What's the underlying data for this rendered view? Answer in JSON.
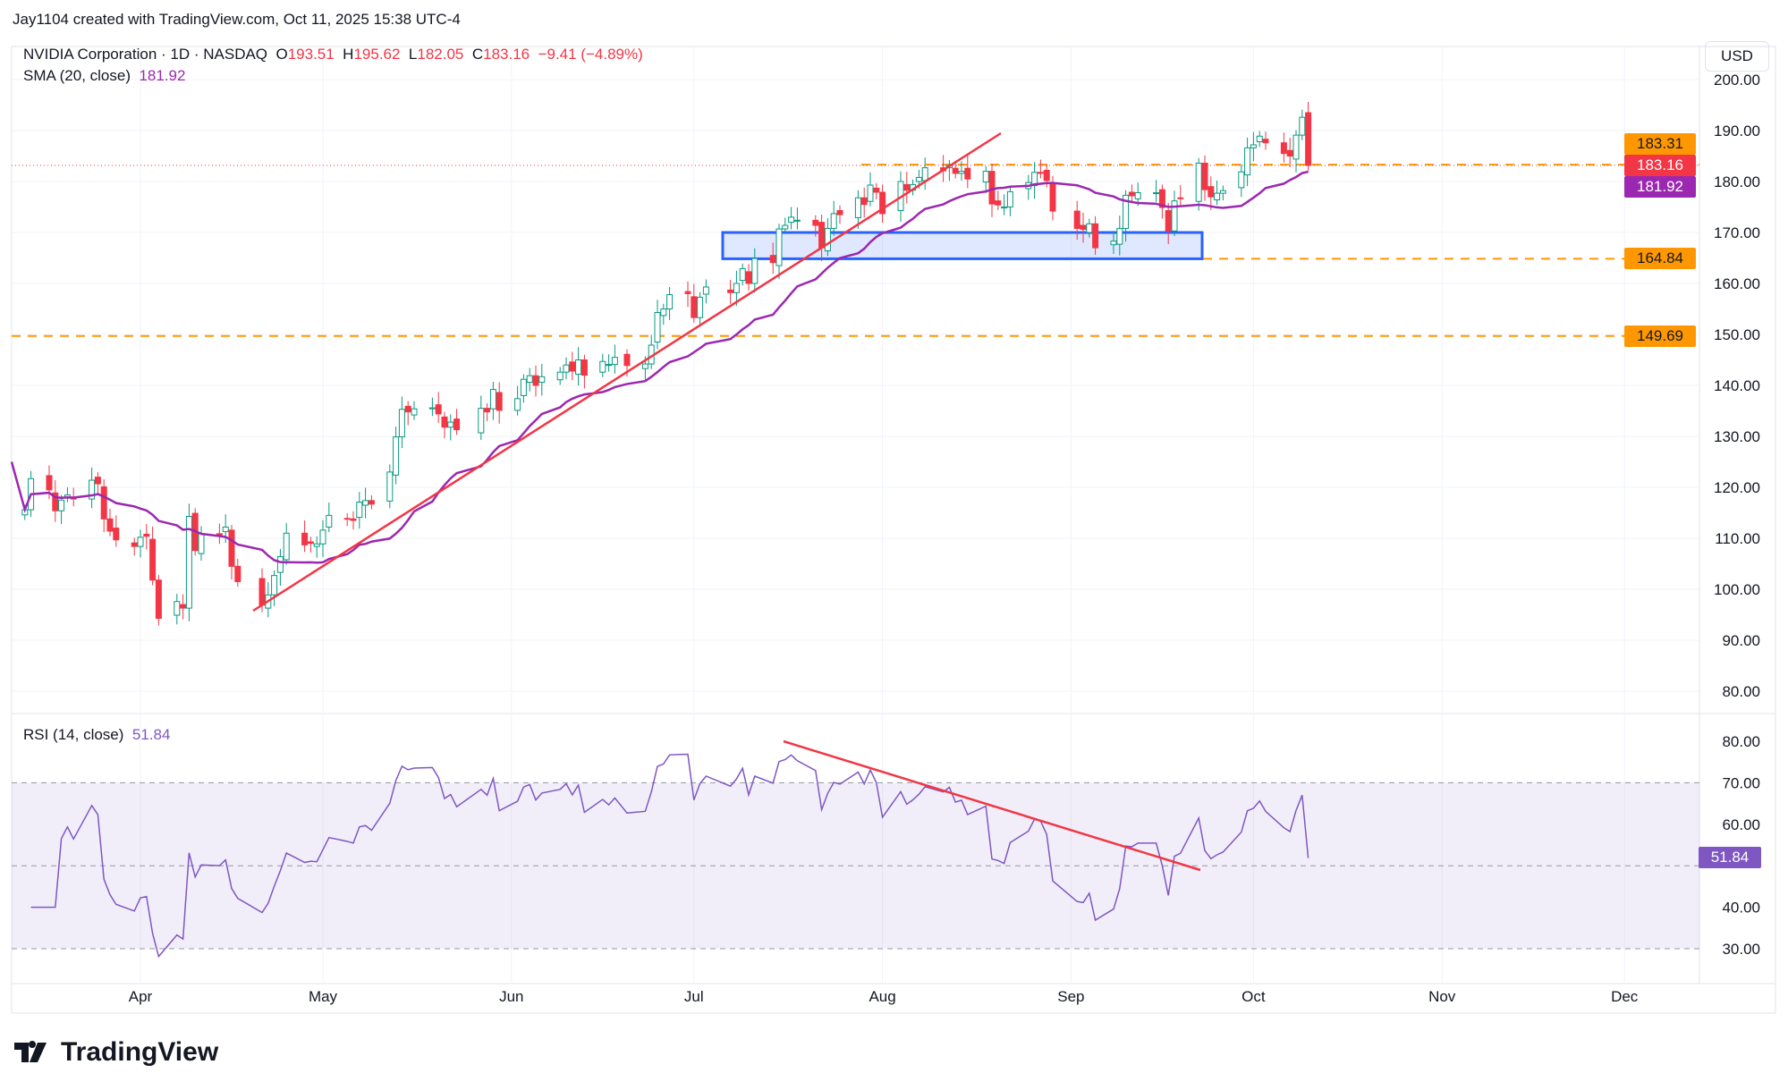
{
  "attribution": "Jay1104 created with TradingView.com, Oct 11, 2025 15:38 UTC-4",
  "symbol": {
    "name": "NVIDIA Corporation · 1D · NASDAQ",
    "o_label": "O",
    "o": "193.51",
    "h_label": "H",
    "h": "195.62",
    "l_label": "L",
    "l": "182.05",
    "c_label": "C",
    "c": "183.16",
    "change": "−9.41 (−4.89%)"
  },
  "sma": {
    "label": "SMA (20, close)",
    "value": "181.92"
  },
  "rsi": {
    "label": "RSI (14, close)",
    "value": "51.84"
  },
  "currency": "USD",
  "tags": {
    "resist": "183.31",
    "last": "183.16",
    "sma": "181.92",
    "support1": "164.84",
    "support2": "149.69",
    "rsi": "51.84"
  },
  "logo": "TradingView",
  "colors": {
    "up": "#089981",
    "down": "#f23645",
    "sma": "#9c27b0",
    "rsi": "#7e57c2",
    "level": "#ff9800",
    "trend": "#f23645",
    "box": "#2962ff"
  },
  "chart_data": {
    "type": "candlestick",
    "price_axis": {
      "ylim": [
        75,
        205
      ],
      "ticks": [
        "80.00",
        "90.00",
        "100.00",
        "110.00",
        "120.00",
        "130.00",
        "140.00",
        "150.00",
        "160.00",
        "170.00",
        "180.00",
        "190.00",
        "200.00"
      ]
    },
    "rsi_axis": {
      "ylim": [
        25,
        85
      ],
      "ticks": [
        "30.00",
        "40.00",
        "60.00",
        "70.00",
        "80.00"
      ],
      "levels": [
        30,
        50,
        70
      ]
    },
    "x_ticks": [
      {
        "label": "Apr",
        "date": "2025-04-01"
      },
      {
        "label": "May",
        "date": "2025-05-01"
      },
      {
        "label": "Jun",
        "date": "2025-06-01"
      },
      {
        "label": "Jul",
        "date": "2025-07-01"
      },
      {
        "label": "Aug",
        "date": "2025-08-01"
      },
      {
        "label": "Sep",
        "date": "2025-09-01"
      },
      {
        "label": "Oct",
        "date": "2025-10-01"
      },
      {
        "label": "Nov",
        "date": "2025-11-01"
      },
      {
        "label": "Dec",
        "date": "2025-12-01"
      }
    ],
    "horizontal_levels": [
      183.31,
      164.84,
      149.69
    ],
    "support_zone": [
      164.84,
      170
    ],
    "last_open": 193.51,
    "last_high": 195.62,
    "last_low": 182.05,
    "closes": [
      [
        "2025-03-13",
        115.6
      ],
      [
        "2025-03-14",
        121.7
      ],
      [
        "2025-03-17",
        119.5
      ],
      [
        "2025-03-18",
        115.4
      ],
      [
        "2025-03-19",
        117.5
      ],
      [
        "2025-03-20",
        118.5
      ],
      [
        "2025-03-21",
        117.7
      ],
      [
        "2025-03-24",
        121.4
      ],
      [
        "2025-03-25",
        120.7
      ],
      [
        "2025-03-26",
        113.8
      ],
      [
        "2025-03-27",
        111.4
      ],
      [
        "2025-03-28",
        109.7
      ],
      [
        "2025-03-31",
        108.4
      ],
      [
        "2025-04-01",
        110.2
      ],
      [
        "2025-04-02",
        110.4
      ],
      [
        "2025-04-03",
        101.8
      ],
      [
        "2025-04-04",
        94.3
      ],
      [
        "2025-04-07",
        97.6
      ],
      [
        "2025-04-08",
        96.3
      ],
      [
        "2025-04-09",
        114.3
      ],
      [
        "2025-04-10",
        107.6
      ],
      [
        "2025-04-11",
        110.9
      ],
      [
        "2025-04-14",
        110.7
      ],
      [
        "2025-04-15",
        112.2
      ],
      [
        "2025-04-16",
        104.5
      ],
      [
        "2025-04-17",
        101.5
      ],
      [
        "2025-04-21",
        96.9
      ],
      [
        "2025-04-22",
        98.9
      ],
      [
        "2025-04-23",
        102.7
      ],
      [
        "2025-04-24",
        106.4
      ],
      [
        "2025-04-25",
        111.0
      ],
      [
        "2025-04-28",
        108.7
      ],
      [
        "2025-04-29",
        109.0
      ],
      [
        "2025-04-30",
        108.9
      ],
      [
        "2025-05-01",
        111.6
      ],
      [
        "2025-05-02",
        114.5
      ],
      [
        "2025-05-05",
        113.8
      ],
      [
        "2025-05-06",
        113.5
      ],
      [
        "2025-05-07",
        117.1
      ],
      [
        "2025-05-08",
        117.4
      ],
      [
        "2025-05-09",
        116.7
      ],
      [
        "2025-05-12",
        123.0
      ],
      [
        "2025-05-13",
        129.9
      ],
      [
        "2025-05-14",
        135.3
      ],
      [
        "2025-05-15",
        134.8
      ],
      [
        "2025-05-16",
        135.4
      ],
      [
        "2025-05-19",
        135.6
      ],
      [
        "2025-05-20",
        134.4
      ],
      [
        "2025-05-21",
        131.8
      ],
      [
        "2025-05-22",
        132.8
      ],
      [
        "2025-05-23",
        131.3
      ],
      [
        "2025-05-27",
        135.5
      ],
      [
        "2025-05-28",
        134.8
      ],
      [
        "2025-05-29",
        139.2
      ],
      [
        "2025-05-30",
        135.1
      ],
      [
        "2025-06-02",
        137.4
      ],
      [
        "2025-06-03",
        141.2
      ],
      [
        "2025-06-04",
        141.9
      ],
      [
        "2025-06-05",
        140.0
      ],
      [
        "2025-06-06",
        141.7
      ],
      [
        "2025-06-09",
        142.6
      ],
      [
        "2025-06-10",
        144.0
      ],
      [
        "2025-06-11",
        142.8
      ],
      [
        "2025-06-12",
        145.0
      ],
      [
        "2025-06-13",
        142.0
      ],
      [
        "2025-06-16",
        144.7
      ],
      [
        "2025-06-17",
        144.1
      ],
      [
        "2025-06-18",
        145.5
      ],
      [
        "2025-06-20",
        143.9
      ],
      [
        "2025-06-23",
        144.2
      ],
      [
        "2025-06-24",
        147.9
      ],
      [
        "2025-06-25",
        154.3
      ],
      [
        "2025-06-26",
        155.0
      ],
      [
        "2025-06-27",
        157.8
      ],
      [
        "2025-06-30",
        158.0
      ],
      [
        "2025-07-01",
        153.3
      ],
      [
        "2025-07-02",
        157.3
      ],
      [
        "2025-07-03",
        159.3
      ],
      [
        "2025-07-07",
        158.2
      ],
      [
        "2025-07-08",
        160.0
      ],
      [
        "2025-07-09",
        162.9
      ],
      [
        "2025-07-10",
        160.0
      ],
      [
        "2025-07-11",
        164.9
      ],
      [
        "2025-07-14",
        164.1
      ],
      [
        "2025-07-15",
        170.7
      ],
      [
        "2025-07-16",
        171.4
      ],
      [
        "2025-07-17",
        173.0
      ],
      [
        "2025-07-18",
        172.4
      ],
      [
        "2025-07-21",
        171.4
      ],
      [
        "2025-07-22",
        167.0
      ],
      [
        "2025-07-23",
        170.8
      ],
      [
        "2025-07-24",
        173.7
      ],
      [
        "2025-07-25",
        173.5
      ],
      [
        "2025-07-28",
        176.8
      ],
      [
        "2025-07-29",
        175.5
      ],
      [
        "2025-07-30",
        179.3
      ],
      [
        "2025-07-31",
        177.9
      ],
      [
        "2025-08-01",
        173.7
      ],
      [
        "2025-08-04",
        180.0
      ],
      [
        "2025-08-05",
        178.3
      ],
      [
        "2025-08-06",
        179.4
      ],
      [
        "2025-08-07",
        180.8
      ],
      [
        "2025-08-08",
        182.7
      ],
      [
        "2025-08-11",
        182.1
      ],
      [
        "2025-08-12",
        183.2
      ],
      [
        "2025-08-13",
        181.6
      ],
      [
        "2025-08-14",
        182.0
      ],
      [
        "2025-08-15",
        180.5
      ],
      [
        "2025-08-18",
        182.0
      ],
      [
        "2025-08-19",
        175.6
      ],
      [
        "2025-08-20",
        175.4
      ],
      [
        "2025-08-21",
        175.0
      ],
      [
        "2025-08-22",
        178.0
      ],
      [
        "2025-08-25",
        179.8
      ],
      [
        "2025-08-26",
        181.8
      ],
      [
        "2025-08-27",
        181.6
      ],
      [
        "2025-08-28",
        180.2
      ],
      [
        "2025-08-29",
        174.2
      ],
      [
        "2025-09-02",
        170.8
      ],
      [
        "2025-09-03",
        170.6
      ],
      [
        "2025-09-04",
        171.7
      ],
      [
        "2025-09-05",
        167.0
      ],
      [
        "2025-09-08",
        168.3
      ],
      [
        "2025-09-09",
        170.8
      ],
      [
        "2025-09-10",
        177.3
      ],
      [
        "2025-09-11",
        177.2
      ],
      [
        "2025-09-12",
        177.8
      ],
      [
        "2025-09-15",
        177.8
      ],
      [
        "2025-09-16",
        174.9
      ],
      [
        "2025-09-17",
        170.3
      ],
      [
        "2025-09-18",
        176.2
      ],
      [
        "2025-09-19",
        176.7
      ],
      [
        "2025-09-22",
        183.6
      ],
      [
        "2025-09-23",
        178.4
      ],
      [
        "2025-09-24",
        177.0
      ],
      [
        "2025-09-25",
        177.7
      ],
      [
        "2025-09-26",
        178.2
      ],
      [
        "2025-09-29",
        181.9
      ],
      [
        "2025-09-30",
        186.6
      ],
      [
        "2025-10-01",
        187.2
      ],
      [
        "2025-10-02",
        188.9
      ],
      [
        "2025-10-03",
        187.6
      ],
      [
        "2025-10-06",
        185.5
      ],
      [
        "2025-10-07",
        185.0
      ],
      [
        "2025-10-08",
        189.1
      ],
      [
        "2025-10-09",
        192.6
      ],
      [
        "2025-10-10",
        183.16
      ]
    ]
  }
}
